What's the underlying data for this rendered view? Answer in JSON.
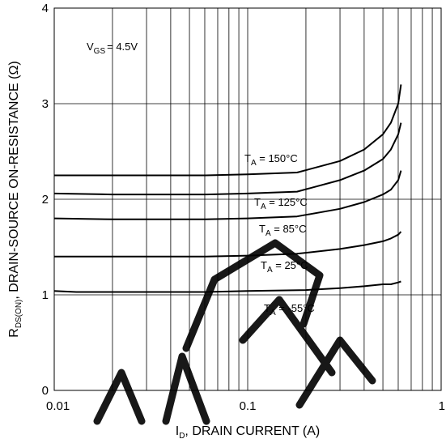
{
  "chart_data": {
    "type": "line",
    "condition": {
      "main": "V",
      "sub": "GS",
      "rest": "= 4.5V"
    },
    "xlabel": {
      "main": "I",
      "sub": "D",
      "rest": ", DRAIN CURRENT (A)"
    },
    "ylabel": {
      "main": "R",
      "sub": "DS(ON)",
      "rest": ", DRAIN-SOURCE ON-RESISTANCE (Ω)"
    },
    "x_scale": "log",
    "xlim": [
      0.01,
      1
    ],
    "ylim": [
      0,
      4
    ],
    "x_ticks": [
      "0.01",
      "0.1",
      "1"
    ],
    "y_ticks": [
      "0",
      "1",
      "2",
      "3",
      "4"
    ],
    "grid": true,
    "series": [
      {
        "name": {
          "main": "T",
          "sub": "A",
          "rest": " = 150°C"
        },
        "x": [
          0.01,
          0.02,
          0.06,
          0.1,
          0.18,
          0.3,
          0.4,
          0.5,
          0.55,
          0.6,
          0.62
        ],
        "y": [
          2.25,
          2.25,
          2.25,
          2.26,
          2.28,
          2.4,
          2.52,
          2.68,
          2.8,
          3.0,
          3.2
        ]
      },
      {
        "name": {
          "main": "T",
          "sub": "A",
          "rest": " = 125°C"
        },
        "x": [
          0.01,
          0.02,
          0.06,
          0.1,
          0.18,
          0.3,
          0.4,
          0.5,
          0.55,
          0.6,
          0.62
        ],
        "y": [
          2.06,
          2.05,
          2.05,
          2.06,
          2.08,
          2.2,
          2.3,
          2.42,
          2.52,
          2.68,
          2.8
        ]
      },
      {
        "name": {
          "main": "T",
          "sub": "A",
          "rest": " = 85°C"
        },
        "x": [
          0.01,
          0.02,
          0.06,
          0.1,
          0.18,
          0.3,
          0.4,
          0.5,
          0.55,
          0.6,
          0.62
        ],
        "y": [
          1.8,
          1.79,
          1.79,
          1.8,
          1.82,
          1.9,
          1.97,
          2.05,
          2.1,
          2.2,
          2.3
        ]
      },
      {
        "name": {
          "main": "T",
          "sub": "A",
          "rest": " = 25°C"
        },
        "x": [
          0.01,
          0.02,
          0.06,
          0.1,
          0.18,
          0.3,
          0.4,
          0.5,
          0.55,
          0.6,
          0.62
        ],
        "y": [
          1.4,
          1.4,
          1.4,
          1.41,
          1.43,
          1.48,
          1.52,
          1.56,
          1.59,
          1.63,
          1.66
        ]
      },
      {
        "name": {
          "main": "T",
          "sub": "A",
          "rest": " = -55°C"
        },
        "x": [
          0.01,
          0.013,
          0.06,
          0.1,
          0.2,
          0.3,
          0.4,
          0.5,
          0.55,
          0.6,
          0.62
        ],
        "y": [
          1.04,
          1.03,
          1.03,
          1.04,
          1.05,
          1.07,
          1.09,
          1.11,
          1.11,
          1.13,
          1.14
        ]
      }
    ]
  }
}
